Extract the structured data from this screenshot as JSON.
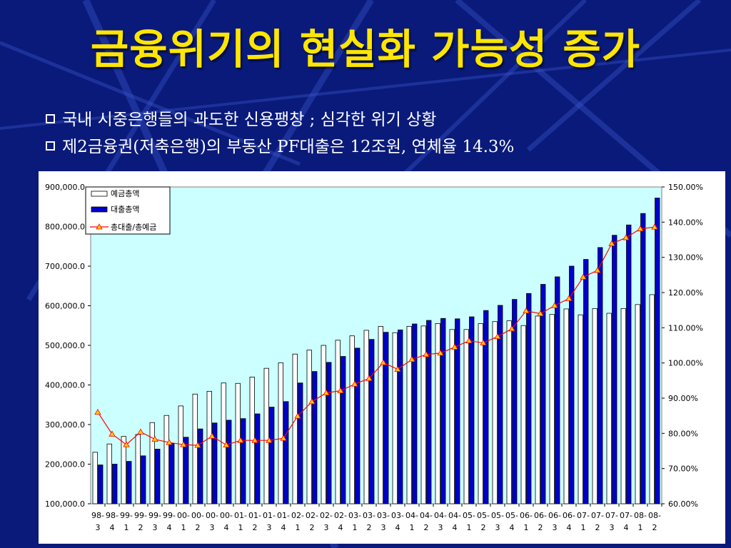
{
  "title": "금융위기의 현실화 가능성 증가",
  "bullets": [
    "국내 시중은행들의 과도한 신용팽창 ; 심각한 위기 상황",
    "제2금융권(저축은행)의 부동산 PF대출은 12조원, 연체율 14.3%"
  ],
  "colors": {
    "background": "#0a1a7a",
    "title": "#ffe600",
    "plot_area": "#ccffff",
    "deposit_bar": "#ffffff",
    "loan_bar": "#0000cc",
    "ratio_line": "#ff0000",
    "ratio_marker": "#ffcc00"
  },
  "chart_data": {
    "type": "bar",
    "categories": [
      "98-3",
      "98-4",
      "99-1",
      "99-2",
      "99-3",
      "99-4",
      "00-1",
      "00-2",
      "00-3",
      "00-4",
      "01-1",
      "01-2",
      "01-3",
      "01-4",
      "02-1",
      "02-2",
      "02-3",
      "02-4",
      "03-1",
      "03-2",
      "03-3",
      "03-4",
      "04-1",
      "04-2",
      "04-3",
      "04-4",
      "05-1",
      "05-2",
      "05-3",
      "05-4",
      "06-1",
      "06-2",
      "06-3",
      "06-4",
      "07-1",
      "07-2",
      "07-3",
      "07-4",
      "08-1",
      "08-2"
    ],
    "series": [
      {
        "name": "예금총액",
        "kind": "bar",
        "axis": "left",
        "values": [
          230000,
          251000,
          270000,
          275000,
          305000,
          323000,
          347000,
          377000,
          384000,
          405000,
          404000,
          420000,
          442000,
          456000,
          478000,
          488000,
          500000,
          513000,
          524000,
          538000,
          548000,
          532000,
          548000,
          549000,
          555000,
          540000,
          540000,
          555000,
          560000,
          562000,
          550000,
          574000,
          578000,
          592000,
          577000,
          593000,
          581000,
          593000,
          603000,
          628000
        ]
      },
      {
        "name": "대출총액",
        "kind": "bar",
        "axis": "left",
        "values": [
          198000,
          200000,
          207000,
          221000,
          238000,
          252000,
          268000,
          289000,
          304000,
          311000,
          315000,
          327000,
          344000,
          358000,
          405000,
          434000,
          457000,
          472000,
          493000,
          515000,
          533000,
          539000,
          554000,
          563000,
          568000,
          567000,
          572000,
          588000,
          601000,
          616000,
          631000,
          654000,
          673000,
          700000,
          717000,
          747000,
          778000,
          804000,
          833000,
          872000
        ]
      },
      {
        "name": "총대출/총예금",
        "kind": "line",
        "axis": "right",
        "values": [
          86.0,
          79.8,
          76.8,
          80.4,
          78.3,
          77.4,
          76.8,
          76.6,
          79.2,
          76.7,
          78.0,
          78.0,
          78.0,
          78.6,
          84.9,
          89.0,
          91.5,
          92.1,
          94.0,
          95.6,
          100.1,
          98.2,
          101.0,
          102.4,
          102.8,
          104.5,
          106.3,
          105.7,
          107.5,
          109.7,
          114.8,
          114.0,
          116.3,
          118.3,
          124.4,
          126.3,
          133.9,
          135.6,
          138.1,
          138.6
        ]
      }
    ],
    "y_left": {
      "range": [
        100000,
        900000
      ],
      "ticks": [
        "100,000.0",
        "200,000.0",
        "300,000.0",
        "400,000.0",
        "500,000.0",
        "600,000.0",
        "700,000.0",
        "800,000.0",
        "900,000.0"
      ]
    },
    "y_right": {
      "range": [
        60,
        150
      ],
      "ticks": [
        "60.00%",
        "70.00%",
        "80.00%",
        "90.00%",
        "100.00%",
        "110.00%",
        "120.00%",
        "130.00%",
        "140.00%",
        "150.00%"
      ]
    },
    "legend": {
      "placement": "top-left",
      "entries": [
        "예금총액",
        "대출총액",
        "총대출/총예금"
      ]
    },
    "grid": false
  }
}
